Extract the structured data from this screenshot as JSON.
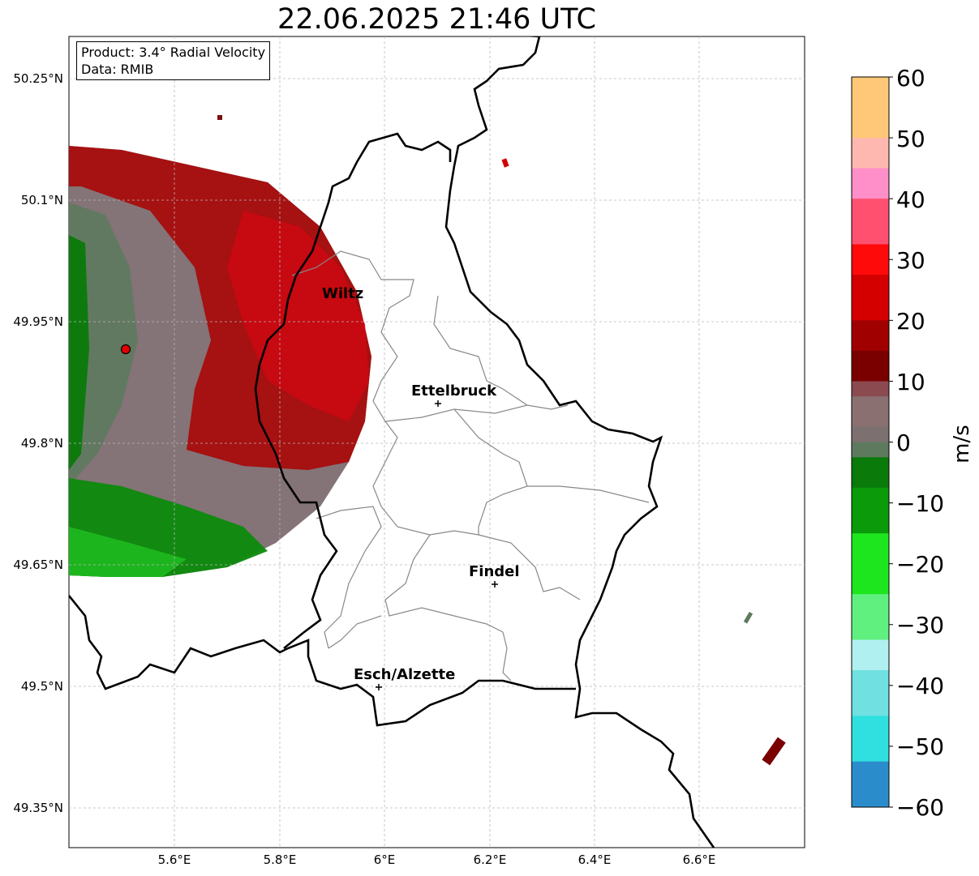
{
  "title": "22.06.2025 21:46 UTC",
  "info": {
    "product": "Product: 3.4° Radial Velocity",
    "data": "Data: RMIB"
  },
  "axes": {
    "lat_ticks": [
      "50.25°N",
      "50.1°N",
      "49.95°N",
      "49.8°N",
      "49.65°N",
      "49.5°N",
      "49.35°N"
    ],
    "lon_ticks": [
      "5.6°E",
      "5.8°E",
      "6°E",
      "6.2°E",
      "6.4°E",
      "6.6°E"
    ],
    "gridlines": true
  },
  "colorbar": {
    "label": "m/s",
    "ticks": [
      "60",
      "50",
      "40",
      "30",
      "20",
      "10",
      "0",
      "−10",
      "−20",
      "−30",
      "−40",
      "−50",
      "−60"
    ],
    "range": [
      -60,
      60
    ],
    "colors": {
      "positive_high": "#ff9a55",
      "positive_mid": "#ff8fc8",
      "positive_low": "#d40000",
      "zero": "#7d7070",
      "negative_low": "#0a7a0a",
      "negative_mid": "#1ee61e",
      "negative_high": "#2b8ccc"
    }
  },
  "cities": [
    {
      "name": "Wiltz"
    },
    {
      "name": "Ettelbruck"
    },
    {
      "name": "Findel"
    },
    {
      "name": "Esch/Alzette"
    }
  ],
  "radar_site_color": "#e00000"
}
